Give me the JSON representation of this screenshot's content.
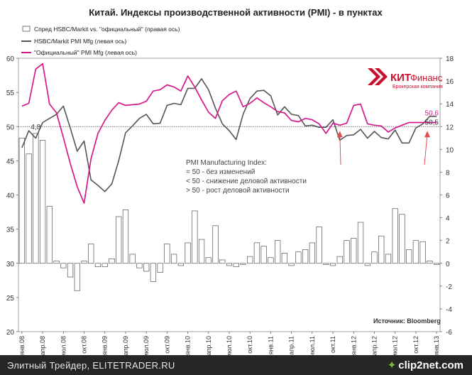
{
  "chart_data": {
    "type": "line+bar",
    "title": "Китай. Индексы производственной активности (PMI) - в пунктах",
    "legend": [
      {
        "name": "Спред HSBC/Markit  vs. \"официальный\" (правая ось)",
        "marker": "bar",
        "color": "#ffffff"
      },
      {
        "name": "HSBC/Markit PMI Mfg  (левая ось)",
        "marker": "line",
        "color": "#555555"
      },
      {
        "name": "\"Официальный\" PMI Mfg  (левая ось)",
        "marker": "line",
        "color": "#d6198a"
      }
    ],
    "left_axis": {
      "min": 20,
      "max": 60,
      "step": 5,
      "ticks": [
        "20",
        "25",
        "30",
        "35",
        "40",
        "45",
        "50",
        "55",
        "60"
      ]
    },
    "right_axis": {
      "min": -6,
      "max": 18,
      "step": 2,
      "ticks": [
        "-6",
        "-4",
        "-2",
        "0",
        "2",
        "4",
        "6",
        "8",
        "10",
        "12",
        "14",
        "16",
        "18"
      ]
    },
    "x_ticks": [
      "янв.08",
      "апр.08",
      "июл.08",
      "окт.08",
      "янв.09",
      "апр.09",
      "июл.09",
      "окт.09",
      "янв.10",
      "апр.10",
      "июл.10",
      "окт.10",
      "янв.11",
      "апр.11",
      "июл.11",
      "окт.11",
      "янв.12",
      "апр.12",
      "июл.12",
      "окт.12",
      "янв.13"
    ],
    "months": 61,
    "series": [
      {
        "name": "HSBC/Markit PMI Mfg",
        "axis": "left",
        "values": [
          46.9,
          49.4,
          48.3,
          50.6,
          51.2,
          51.8,
          53.0,
          49.8,
          46.4,
          47.9,
          42.2,
          41.4,
          40.5,
          41.6,
          45.0,
          49.1,
          50.1,
          51.2,
          51.8,
          50.4,
          50.5,
          53.1,
          53.4,
          53.2,
          55.6,
          55.6,
          57.0,
          55.4,
          52.7,
          50.4,
          49.4,
          48.1,
          51.8,
          54.1,
          55.2,
          55.3,
          54.5,
          51.7,
          52.9,
          51.8,
          51.6,
          50.1,
          50.2,
          49.9,
          49.9,
          51.0,
          48.0,
          48.7,
          48.8,
          49.6,
          48.3,
          49.3,
          48.4,
          48.2,
          49.5,
          47.6,
          47.6,
          49.8,
          50.4,
          51.5,
          51.5
        ]
      },
      {
        "name": "\"Официальный\" PMI Mfg",
        "axis": "left",
        "values": [
          53.0,
          53.4,
          58.4,
          59.2,
          53.3,
          52.0,
          48.4,
          44.6,
          41.2,
          38.8,
          45.3,
          49.0,
          50.9,
          52.4,
          53.5,
          53.1,
          53.2,
          53.3,
          53.7,
          55.2,
          55.4,
          56.1,
          55.8,
          55.2,
          57.4,
          55.8,
          53.9,
          52.1,
          51.2,
          53.8,
          54.7,
          55.2,
          52.9,
          53.4,
          54.2,
          53.5,
          52.9,
          52.2,
          52.0,
          50.9,
          50.7,
          51.2,
          51.0,
          50.4,
          49.0,
          50.5,
          50.2,
          50.5,
          53.1,
          53.3,
          50.4,
          50.2,
          50.1,
          49.2,
          49.8,
          50.2,
          50.6,
          50.6,
          50.6,
          50.6,
          50.6
        ]
      },
      {
        "name": "Спред HSBC/Markit vs. \"официальный\"",
        "axis": "right",
        "values": [
          11.0,
          9.6,
          11.4,
          10.8,
          5.0,
          0.2,
          -0.4,
          -1.2,
          -2.4,
          0.2,
          1.7,
          -0.3,
          -0.3,
          0.4,
          4.1,
          4.7,
          0.8,
          -0.4,
          -0.7,
          -1.6,
          -0.8,
          1.7,
          0.8,
          -0.2,
          1.8,
          4.6,
          2.1,
          0.5,
          3.3,
          0.3,
          -0.2,
          -0.3,
          -0.1,
          0.6,
          1.8,
          1.5,
          0.5,
          2.0,
          0.9,
          -0.2,
          1.0,
          1.2,
          1.8,
          3.2,
          -0.1,
          -0.2,
          0.6,
          2.0,
          2.2,
          3.6,
          -0.2,
          1.0,
          2.4,
          0.8,
          4.8,
          4.3,
          1.2,
          2.0,
          1.9,
          0.2,
          -0.1
        ]
      }
    ],
    "annotations": [
      {
        "text": "PMI Manufacturing Index:"
      },
      {
        "text": "= 50 - без изменений"
      },
      {
        "text": "< 50 - снижение деловой активности"
      },
      {
        "text": "> 50 - рост деловой активности"
      },
      {
        "text": "4,8"
      },
      {
        "text": "50,6"
      },
      {
        "text": "50,5"
      },
      {
        "text": "Источник: Bloomberg"
      }
    ],
    "logo": {
      "brand": "КИТ",
      "brand_suffix": "Финанс",
      "tagline": "Брокерская компания",
      "color": "#c8102e"
    }
  },
  "footer": {
    "left_text": "Элитный Трейдер, ELITETRADER.RU",
    "right_text": "clip2net.com"
  }
}
